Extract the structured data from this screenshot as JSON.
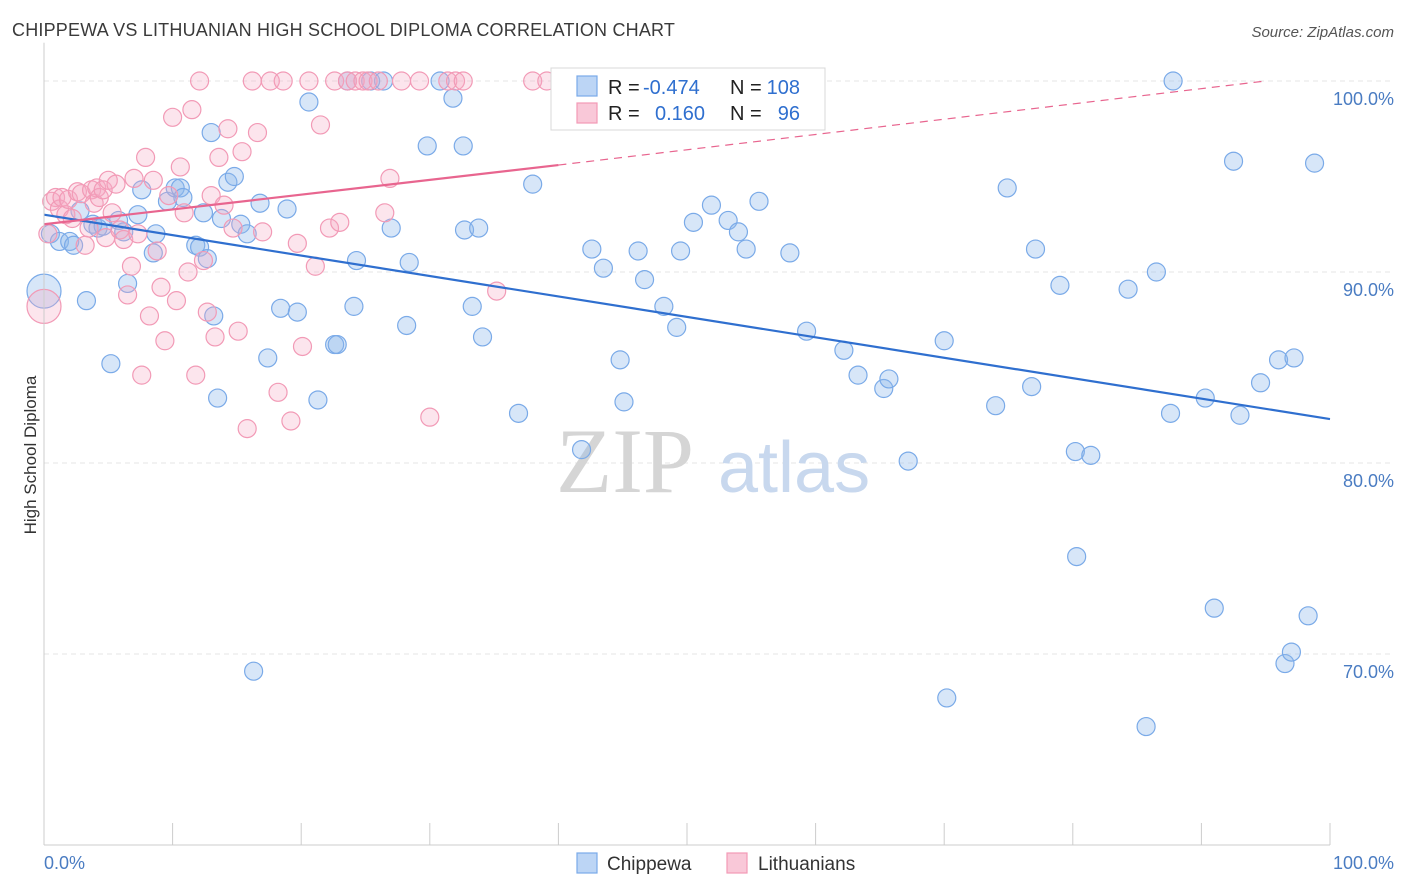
{
  "title": "CHIPPEWA VS LITHUANIAN HIGH SCHOOL DIPLOMA CORRELATION CHART",
  "source": "Source: ZipAtlas.com",
  "watermark": {
    "zip": "ZIP",
    "atlas": "atlas"
  },
  "colors": {
    "chippewa": "#7aaae8",
    "chippewa_line": "#2f6fcf",
    "lithuanians": "#f29ab6",
    "lithuanians_line": "#e8658f",
    "tick_text": "#4a7cc2"
  },
  "chart_data": {
    "type": "scatter",
    "title": "CHIPPEWA VS LITHUANIAN HIGH SCHOOL DIPLOMA CORRELATION CHART",
    "xlabel": "",
    "ylabel": "High School Diploma",
    "xlim": [
      0,
      100
    ],
    "ylim": [
      60,
      102
    ],
    "x_tick_labels": [
      "0.0%",
      "100.0%"
    ],
    "y_ticks": [
      70,
      80,
      90,
      100
    ],
    "y_tick_labels": [
      "70.0%",
      "80.0%",
      "90.0%",
      "100.0%"
    ],
    "grid": true,
    "legend": [
      {
        "name": "Chippewa",
        "r_label": "R =",
        "r": "-0.474",
        "n_label": "N =",
        "n": "108"
      },
      {
        "name": "Lithuanians",
        "r_label": "R =",
        "r": "0.160",
        "n_label": "N =",
        "n": "96"
      }
    ],
    "series": [
      {
        "name": "Chippewa",
        "trend": {
          "x1": 0,
          "y1": 93.0,
          "x2": 100,
          "y2": 82.3
        },
        "points": [
          [
            0,
            89,
            2
          ],
          [
            0.5,
            92,
            1
          ],
          [
            1.2,
            91.6,
            1
          ],
          [
            2,
            91.6,
            1
          ],
          [
            2.3,
            91.4,
            1
          ],
          [
            2.8,
            93.2,
            1
          ],
          [
            3.3,
            88.5,
            1
          ],
          [
            3.8,
            92.5,
            1
          ],
          [
            4.2,
            92.3,
            1
          ],
          [
            4.6,
            92.4,
            1
          ],
          [
            5.2,
            85.2,
            1
          ],
          [
            5.8,
            92.7,
            1
          ],
          [
            6.2,
            92.1,
            1
          ],
          [
            6.5,
            89.4,
            1
          ],
          [
            7.3,
            93.0,
            1
          ],
          [
            7.6,
            94.3,
            1
          ],
          [
            8.5,
            91.0,
            1
          ],
          [
            8.7,
            92.0,
            1
          ],
          [
            9.6,
            93.7,
            1
          ],
          [
            10.2,
            94.4,
            1
          ],
          [
            10.6,
            94.4,
            1
          ],
          [
            10.8,
            93.9,
            1
          ],
          [
            11.8,
            91.4,
            1
          ],
          [
            12.1,
            91.3,
            1
          ],
          [
            12.4,
            93.1,
            1
          ],
          [
            12.7,
            90.7,
            1
          ],
          [
            13,
            97.3,
            1
          ],
          [
            13.2,
            87.7,
            1
          ],
          [
            13.5,
            83.4,
            1
          ],
          [
            13.8,
            92.8,
            1
          ],
          [
            14.3,
            94.7,
            1
          ],
          [
            14.8,
            95.0,
            1
          ],
          [
            15.3,
            92.5,
            1
          ],
          [
            15.8,
            92.0,
            1
          ],
          [
            16.3,
            69.1,
            1
          ],
          [
            16.8,
            93.6,
            1
          ],
          [
            17.4,
            85.5,
            1
          ],
          [
            18.4,
            88.1,
            1
          ],
          [
            18.9,
            93.3,
            1
          ],
          [
            19.7,
            87.9,
            1
          ],
          [
            20.6,
            98.9,
            1
          ],
          [
            21.3,
            83.3,
            1
          ],
          [
            22.6,
            86.2,
            1
          ],
          [
            22.8,
            86.2,
            1
          ],
          [
            23.6,
            100,
            1
          ],
          [
            24.1,
            88.2,
            1
          ],
          [
            24.3,
            90.6,
            1
          ],
          [
            25.4,
            100,
            1
          ],
          [
            26.4,
            100,
            1
          ],
          [
            27,
            92.3,
            1
          ],
          [
            28.2,
            87.2,
            1
          ],
          [
            28.4,
            90.5,
            1
          ],
          [
            29.8,
            96.6,
            1
          ],
          [
            30.8,
            100,
            1
          ],
          [
            31.8,
            99.1,
            1
          ],
          [
            32.6,
            96.6,
            1
          ],
          [
            32.7,
            92.2,
            1
          ],
          [
            33.3,
            88.2,
            1
          ],
          [
            33.8,
            92.3,
            1
          ],
          [
            34.1,
            86.6,
            1
          ],
          [
            36.9,
            82.6,
            1
          ],
          [
            38,
            94.6,
            1
          ],
          [
            41.8,
            80.7,
            1
          ],
          [
            42.6,
            91.2,
            1
          ],
          [
            43.5,
            90.2,
            1
          ],
          [
            44.8,
            85.4,
            1
          ],
          [
            45.1,
            83.2,
            1
          ],
          [
            46.2,
            91.1,
            1
          ],
          [
            46.7,
            89.6,
            1
          ],
          [
            48.2,
            88.2,
            1
          ],
          [
            49.2,
            87.1,
            1
          ],
          [
            49.5,
            91.1,
            1
          ],
          [
            50.5,
            92.6,
            1
          ],
          [
            51.9,
            93.5,
            1
          ],
          [
            53.2,
            92.7,
            1
          ],
          [
            54,
            92.1,
            1
          ],
          [
            54.6,
            91.2,
            1
          ],
          [
            55.6,
            93.7,
            1
          ],
          [
            58,
            91.0,
            1
          ],
          [
            59.3,
            86.9,
            1
          ],
          [
            62.2,
            85.9,
            1
          ],
          [
            63.3,
            84.6,
            1
          ],
          [
            65.3,
            83.9,
            1
          ],
          [
            65.7,
            84.4,
            1
          ],
          [
            67.2,
            80.1,
            1
          ],
          [
            70,
            86.4,
            1
          ],
          [
            70.2,
            67.7,
            1
          ],
          [
            74,
            83.0,
            1
          ],
          [
            74.9,
            94.4,
            1
          ],
          [
            76.8,
            84.0,
            1
          ],
          [
            77.1,
            91.2,
            1
          ],
          [
            79,
            89.3,
            1
          ],
          [
            80.2,
            80.6,
            1
          ],
          [
            80.3,
            75.1,
            1
          ],
          [
            81.4,
            80.4,
            1
          ],
          [
            84.3,
            89.1,
            1
          ],
          [
            85.7,
            66.2,
            1
          ],
          [
            86.5,
            90.0,
            1
          ],
          [
            87.6,
            82.6,
            1
          ],
          [
            87.8,
            100,
            1
          ],
          [
            90.3,
            83.4,
            1
          ],
          [
            91,
            72.4,
            1
          ],
          [
            92.5,
            95.8,
            1
          ],
          [
            93,
            82.5,
            1
          ],
          [
            94.6,
            84.2,
            1
          ],
          [
            96,
            85.4,
            1
          ],
          [
            96.5,
            69.5,
            1
          ],
          [
            97,
            70.1,
            1
          ],
          [
            97.2,
            85.5,
            1
          ],
          [
            98.3,
            72.0,
            1
          ],
          [
            98.8,
            95.7,
            1
          ]
        ]
      },
      {
        "name": "Lithuanians",
        "trend": {
          "x1": 0,
          "y1": 92.5,
          "x2": 40,
          "y2": 95.6
        },
        "trend_dashed": {
          "x1": 40,
          "y1": 95.6,
          "x2": 95,
          "y2": 100
        },
        "points": [
          [
            0,
            88.2,
            2
          ],
          [
            0.3,
            92.0,
            1
          ],
          [
            0.6,
            93.7,
            1
          ],
          [
            0.9,
            93.9,
            1
          ],
          [
            1.2,
            93.3,
            1
          ],
          [
            1.4,
            93.9,
            1
          ],
          [
            1.7,
            93.0,
            1
          ],
          [
            1.9,
            93.8,
            1
          ],
          [
            2.2,
            92.8,
            1
          ],
          [
            2.6,
            94.2,
            1
          ],
          [
            2.9,
            94.1,
            1
          ],
          [
            3.2,
            91.4,
            1
          ],
          [
            3.5,
            92.3,
            1
          ],
          [
            3.7,
            94.3,
            1
          ],
          [
            3.9,
            93.6,
            1
          ],
          [
            4.1,
            94.4,
            1
          ],
          [
            4.3,
            93.9,
            1
          ],
          [
            4.6,
            94.3,
            1
          ],
          [
            4.8,
            91.8,
            1
          ],
          [
            5.0,
            94.8,
            1
          ],
          [
            5.3,
            93.1,
            1
          ],
          [
            5.6,
            94.6,
            1
          ],
          [
            5.9,
            92.2,
            1
          ],
          [
            6.2,
            91.7,
            1
          ],
          [
            6.5,
            88.8,
            1
          ],
          [
            6.8,
            90.3,
            1
          ],
          [
            7.0,
            94.9,
            1
          ],
          [
            7.3,
            92.0,
            1
          ],
          [
            7.6,
            84.6,
            1
          ],
          [
            7.9,
            96.0,
            1
          ],
          [
            8.2,
            87.7,
            1
          ],
          [
            8.5,
            94.8,
            1
          ],
          [
            8.8,
            91.1,
            1
          ],
          [
            9.1,
            89.2,
            1
          ],
          [
            9.4,
            86.4,
            1
          ],
          [
            9.7,
            94.0,
            1
          ],
          [
            10.0,
            98.1,
            1
          ],
          [
            10.3,
            88.5,
            1
          ],
          [
            10.6,
            95.5,
            1
          ],
          [
            10.9,
            93.1,
            1
          ],
          [
            11.2,
            90.0,
            1
          ],
          [
            11.5,
            98.5,
            1
          ],
          [
            11.8,
            84.6,
            1
          ],
          [
            12.1,
            100,
            1
          ],
          [
            12.4,
            90.6,
            1
          ],
          [
            12.7,
            87.9,
            1
          ],
          [
            13.0,
            94.0,
            1
          ],
          [
            13.3,
            86.6,
            1
          ],
          [
            13.6,
            96.0,
            1
          ],
          [
            14.0,
            93.5,
            1
          ],
          [
            14.3,
            97.5,
            1
          ],
          [
            14.7,
            92.3,
            1
          ],
          [
            15.1,
            86.9,
            1
          ],
          [
            15.4,
            96.3,
            1
          ],
          [
            15.8,
            81.8,
            1
          ],
          [
            16.2,
            100,
            1
          ],
          [
            16.6,
            97.3,
            1
          ],
          [
            17.0,
            92.1,
            1
          ],
          [
            17.6,
            100,
            1
          ],
          [
            18.2,
            83.7,
            1
          ],
          [
            18.6,
            100,
            1
          ],
          [
            19.2,
            82.2,
            1
          ],
          [
            19.7,
            91.5,
            1
          ],
          [
            20.1,
            86.1,
            1
          ],
          [
            20.6,
            100,
            1
          ],
          [
            21.1,
            90.3,
            1
          ],
          [
            21.5,
            97.7,
            1
          ],
          [
            22.2,
            92.3,
            1
          ],
          [
            22.6,
            100,
            1
          ],
          [
            23.0,
            92.6,
            1
          ],
          [
            23.6,
            100,
            1
          ],
          [
            24.2,
            100,
            1
          ],
          [
            24.8,
            100,
            1
          ],
          [
            25.2,
            100,
            1
          ],
          [
            26.0,
            100,
            1
          ],
          [
            26.5,
            93.1,
            1
          ],
          [
            26.9,
            94.9,
            1
          ],
          [
            27.8,
            100,
            1
          ],
          [
            29.2,
            100,
            1
          ],
          [
            30.0,
            82.4,
            1
          ],
          [
            31.4,
            100,
            1
          ],
          [
            32.0,
            100,
            1
          ],
          [
            32.6,
            100,
            1
          ],
          [
            35.2,
            89.0,
            1
          ],
          [
            38.0,
            100,
            1
          ],
          [
            39.1,
            100,
            1
          ]
        ]
      }
    ]
  }
}
